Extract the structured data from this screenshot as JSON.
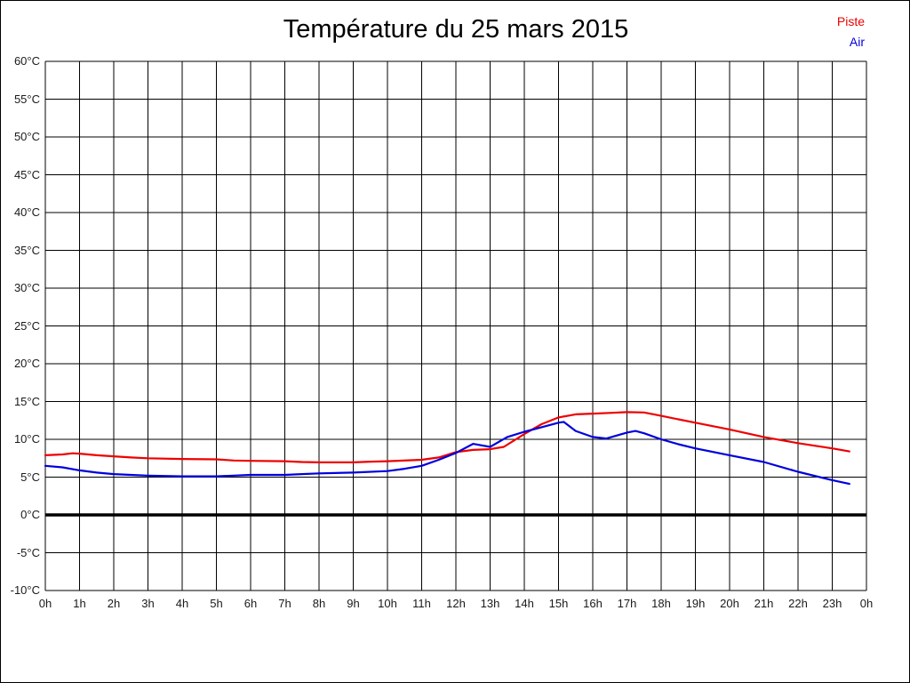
{
  "title": "Température du 25 mars 2015",
  "legend": [
    {
      "label": "Piste",
      "color": "#ee0000"
    },
    {
      "label": "Air",
      "color": "#0000dd"
    }
  ],
  "chart_data": {
    "type": "line",
    "title": "Température du 25 mars 2015",
    "xlabel": "",
    "ylabel": "",
    "x_unit": "hours",
    "xlim": [
      0,
      24
    ],
    "ylim": [
      -10,
      60
    ],
    "y_tick_step": 5,
    "grid": true,
    "zero_line": true,
    "legend_position": "top-right",
    "x_tick_labels": [
      "0h",
      "1h",
      "2h",
      "3h",
      "4h",
      "5h",
      "6h",
      "7h",
      "8h",
      "9h",
      "10h",
      "11h",
      "12h",
      "13h",
      "14h",
      "15h",
      "16h",
      "17h",
      "18h",
      "19h",
      "20h",
      "21h",
      "22h",
      "23h",
      "0h"
    ],
    "y_tick_labels": [
      "60°C",
      "55°C",
      "50°C",
      "45°C",
      "40°C",
      "35°C",
      "30°C",
      "25°C",
      "20°C",
      "15°C",
      "10°C",
      "5°C",
      "0°C",
      "-5°C",
      "-10°C"
    ],
    "series": [
      {
        "name": "Piste",
        "color": "#ee0000",
        "points": [
          [
            0,
            7.9
          ],
          [
            0.5,
            8.0
          ],
          [
            0.8,
            8.15
          ],
          [
            1,
            8.1
          ],
          [
            1.5,
            7.9
          ],
          [
            2,
            7.75
          ],
          [
            2.5,
            7.6
          ],
          [
            3,
            7.5
          ],
          [
            4,
            7.4
          ],
          [
            5,
            7.35
          ],
          [
            5.5,
            7.2
          ],
          [
            6,
            7.15
          ],
          [
            7,
            7.1
          ],
          [
            7.5,
            7.0
          ],
          [
            8,
            6.95
          ],
          [
            9,
            6.95
          ],
          [
            9.5,
            7.05
          ],
          [
            10,
            7.1
          ],
          [
            11,
            7.3
          ],
          [
            11.5,
            7.6
          ],
          [
            12,
            8.3
          ],
          [
            12.5,
            8.6
          ],
          [
            13,
            8.7
          ],
          [
            13.4,
            9.0
          ],
          [
            14,
            10.7
          ],
          [
            14.5,
            12.0
          ],
          [
            15,
            12.9
          ],
          [
            15.5,
            13.3
          ],
          [
            16,
            13.4
          ],
          [
            16.5,
            13.5
          ],
          [
            17,
            13.6
          ],
          [
            17.5,
            13.55
          ],
          [
            18,
            13.1
          ],
          [
            18.5,
            12.65
          ],
          [
            19,
            12.2
          ],
          [
            20,
            11.3
          ],
          [
            21,
            10.3
          ],
          [
            22,
            9.5
          ],
          [
            23,
            8.8
          ],
          [
            23.5,
            8.4
          ]
        ]
      },
      {
        "name": "Air",
        "color": "#0000dd",
        "points": [
          [
            0,
            6.5
          ],
          [
            0.5,
            6.3
          ],
          [
            1,
            5.9
          ],
          [
            1.5,
            5.6
          ],
          [
            2,
            5.4
          ],
          [
            2.5,
            5.3
          ],
          [
            3,
            5.2
          ],
          [
            4,
            5.1
          ],
          [
            5,
            5.1
          ],
          [
            5.5,
            5.2
          ],
          [
            6,
            5.3
          ],
          [
            7,
            5.3
          ],
          [
            7.5,
            5.4
          ],
          [
            8,
            5.5
          ],
          [
            9,
            5.6
          ],
          [
            10,
            5.8
          ],
          [
            10.5,
            6.1
          ],
          [
            11,
            6.5
          ],
          [
            11.5,
            7.3
          ],
          [
            12,
            8.2
          ],
          [
            12.5,
            9.4
          ],
          [
            13,
            9.0
          ],
          [
            13.5,
            10.3
          ],
          [
            14,
            11.0
          ],
          [
            14.5,
            11.6
          ],
          [
            15,
            12.2
          ],
          [
            15.15,
            12.3
          ],
          [
            15.5,
            11.1
          ],
          [
            16,
            10.3
          ],
          [
            16.4,
            10.1
          ],
          [
            17,
            10.9
          ],
          [
            17.25,
            11.1
          ],
          [
            17.5,
            10.8
          ],
          [
            18,
            10.0
          ],
          [
            18.5,
            9.35
          ],
          [
            19,
            8.8
          ],
          [
            20,
            7.9
          ],
          [
            21,
            7.0
          ],
          [
            22,
            5.7
          ],
          [
            23,
            4.6
          ],
          [
            23.5,
            4.1
          ]
        ]
      }
    ]
  }
}
